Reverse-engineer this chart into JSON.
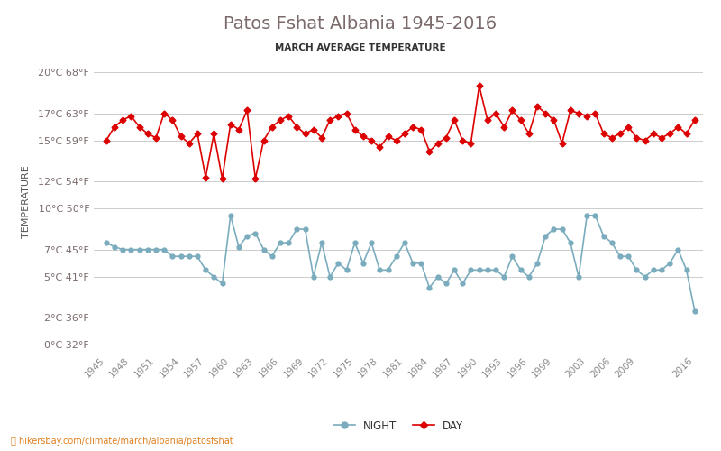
{
  "title": "Patos Fshat Albania 1945-2016",
  "subtitle": "MARCH AVERAGE TEMPERATURE",
  "ylabel": "TEMPERATURE",
  "footer": "hikersbay.com/climate/march/albania/patosfshat",
  "years": [
    1945,
    1946,
    1947,
    1948,
    1949,
    1950,
    1951,
    1952,
    1953,
    1954,
    1955,
    1956,
    1957,
    1958,
    1959,
    1960,
    1961,
    1962,
    1963,
    1964,
    1965,
    1966,
    1967,
    1968,
    1969,
    1970,
    1971,
    1972,
    1973,
    1974,
    1975,
    1976,
    1977,
    1978,
    1979,
    1980,
    1981,
    1982,
    1983,
    1984,
    1985,
    1986,
    1987,
    1988,
    1989,
    1990,
    1991,
    1992,
    1993,
    1994,
    1995,
    1996,
    1997,
    1998,
    1999,
    2000,
    2001,
    2002,
    2003,
    2004,
    2005,
    2006,
    2007,
    2008,
    2009,
    2010,
    2011,
    2012,
    2013,
    2014,
    2015,
    2016
  ],
  "day": [
    15.0,
    16.0,
    16.5,
    16.8,
    16.0,
    15.5,
    15.2,
    17.0,
    16.5,
    15.3,
    14.8,
    15.5,
    12.3,
    15.5,
    12.2,
    16.2,
    15.8,
    17.2,
    12.2,
    15.0,
    16.0,
    16.5,
    16.8,
    16.0,
    15.5,
    15.8,
    15.2,
    16.5,
    16.8,
    17.0,
    15.8,
    15.3,
    15.0,
    14.5,
    15.3,
    15.0,
    15.5,
    16.0,
    15.8,
    14.2,
    14.8,
    15.2,
    16.5,
    15.0,
    14.8,
    19.0,
    16.5,
    17.0,
    16.0,
    17.2,
    16.5,
    15.5,
    17.5,
    17.0,
    16.5,
    14.8,
    17.2,
    17.0,
    16.8,
    17.0,
    15.5,
    15.2,
    15.5,
    16.0,
    15.2,
    15.0,
    15.5,
    15.2,
    15.5,
    16.0,
    15.5,
    16.5
  ],
  "night": [
    7.5,
    7.2,
    7.0,
    7.0,
    7.0,
    7.0,
    7.0,
    7.0,
    6.5,
    6.5,
    6.5,
    6.5,
    5.5,
    5.0,
    4.5,
    9.5,
    7.2,
    8.0,
    8.2,
    7.0,
    6.5,
    7.5,
    7.5,
    8.5,
    8.5,
    5.0,
    7.5,
    5.0,
    6.0,
    5.5,
    7.5,
    6.0,
    7.5,
    5.5,
    5.5,
    6.5,
    7.5,
    6.0,
    6.0,
    4.2,
    5.0,
    4.5,
    5.5,
    4.5,
    5.5,
    5.5,
    5.5,
    5.5,
    5.0,
    6.5,
    5.5,
    5.0,
    6.0,
    8.0,
    8.5,
    8.5,
    7.5,
    5.0,
    9.5,
    9.5,
    8.0,
    7.5,
    6.5,
    6.5,
    5.5,
    5.0,
    5.5,
    5.5,
    6.0,
    7.0,
    5.5,
    2.5
  ],
  "day_color": "#dd0000",
  "night_color": "#7aacbe",
  "title_color": "#7a6a6a",
  "subtitle_color": "#333333",
  "ylabel_color": "#555555",
  "tick_color": "#888888",
  "grid_color": "#cccccc",
  "yticks_c": [
    0,
    2,
    5,
    7,
    10,
    12,
    15,
    17,
    20
  ],
  "yticks_f": [
    32,
    36,
    41,
    45,
    50,
    54,
    59,
    63,
    68
  ],
  "ylim": [
    -0.5,
    21.5
  ],
  "xtick_years": [
    1945,
    1948,
    1951,
    1954,
    1957,
    1960,
    1963,
    1966,
    1969,
    1972,
    1975,
    1978,
    1981,
    1984,
    1987,
    1990,
    1993,
    1996,
    1999,
    2003,
    2006,
    2009,
    2016
  ],
  "background_color": "#ffffff",
  "marker_size": 3.5,
  "line_width": 1.2
}
